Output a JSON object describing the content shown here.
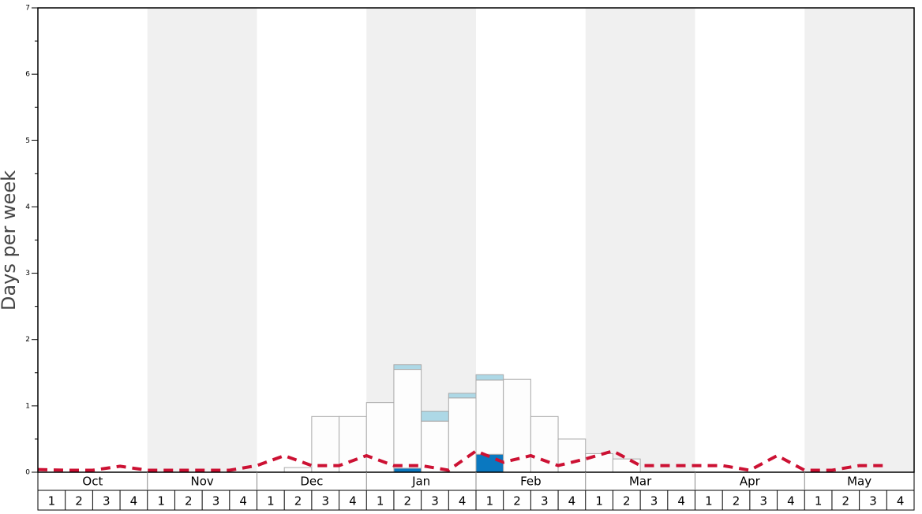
{
  "chart_data": {
    "type": "bar",
    "y_label": "Days per week",
    "months": [
      "Oct",
      "Nov",
      "Dec",
      "Jan",
      "Feb",
      "Mar",
      "Apr",
      "May"
    ],
    "categories": [
      "1",
      "2",
      "3",
      "4",
      "1",
      "2",
      "3",
      "4",
      "1",
      "2",
      "3",
      "4",
      "1",
      "2",
      "3",
      "4",
      "1",
      "2",
      "3",
      "4",
      "1",
      "2",
      "3",
      "4",
      "1",
      "2",
      "3",
      "4",
      "1",
      "2",
      "3",
      "4"
    ],
    "ylim": [
      0,
      7
    ],
    "yticks": [
      0,
      1,
      2,
      3,
      4,
      5,
      6,
      7
    ],
    "band_color": "#f0f0f0",
    "series": [
      {
        "type": "bar",
        "color": "#0a78c0",
        "values": [
          null,
          null,
          null,
          null,
          null,
          null,
          null,
          null,
          null,
          null,
          null,
          null,
          null,
          0.06,
          null,
          null,
          0.27,
          null,
          null,
          null,
          null,
          null,
          null,
          null,
          null,
          null,
          null,
          null,
          null,
          null,
          null,
          null
        ]
      },
      {
        "type": "bar",
        "color": "#fdfdfd",
        "values": [
          null,
          null,
          null,
          null,
          null,
          null,
          null,
          null,
          null,
          0.07,
          0.84,
          0.84,
          1.05,
          1.49,
          0.77,
          1.12,
          1.12,
          1.4,
          0.84,
          0.5,
          0.28,
          0.2,
          null,
          null,
          null,
          null,
          null,
          null,
          null,
          null,
          null,
          null
        ]
      },
      {
        "type": "bar",
        "color": "#add8e6",
        "values": [
          null,
          null,
          null,
          null,
          null,
          null,
          null,
          null,
          null,
          null,
          null,
          null,
          null,
          0.07,
          0.15,
          0.07,
          0.08,
          null,
          null,
          null,
          null,
          null,
          null,
          null,
          null,
          null,
          null,
          null,
          null,
          null,
          null,
          null
        ]
      },
      {
        "type": "line",
        "color": "#cc1133",
        "values": [
          0.04,
          0.03,
          0.03,
          0.09,
          0.03,
          0.03,
          0.03,
          0.03,
          0.1,
          0.25,
          0.1,
          0.1,
          0.25,
          0.1,
          0.1,
          0.03,
          0.32,
          0.15,
          0.25,
          0.1,
          0.2,
          0.32,
          0.1,
          0.1,
          0.1,
          0.1,
          0.03,
          0.25,
          0.03,
          0.03,
          0.1,
          0.1
        ]
      }
    ]
  }
}
